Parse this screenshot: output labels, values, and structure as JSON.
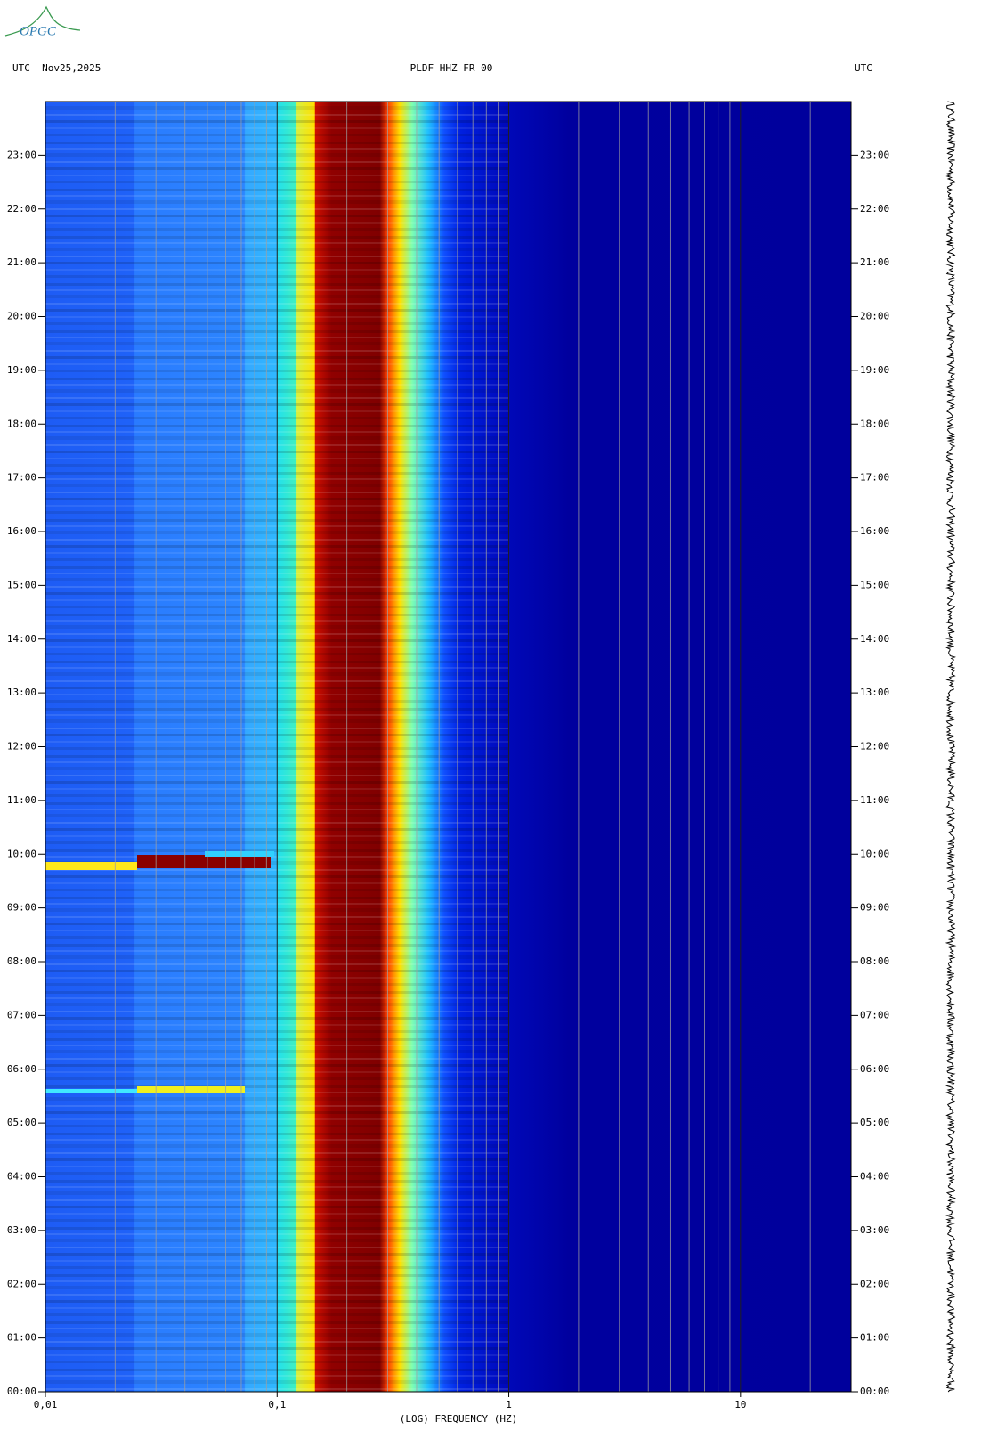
{
  "logo": "OPGC",
  "chart_data": {
    "type": "spectrogram",
    "title": "PLDF HHZ FR 00",
    "date_label": "UTC  Nov25,2025",
    "right_label": "UTC",
    "xlabel": "(LOG) FREQUENCY (HZ)",
    "xscale": "log",
    "xlim": [
      0.01,
      30
    ],
    "xticks": [
      {
        "value": 0.01,
        "label": "0,01"
      },
      {
        "value": 0.1,
        "label": "0,1"
      },
      1,
      10
    ],
    "minor_xticks": [
      0.02,
      0.03,
      0.04,
      0.05,
      0.06,
      0.07,
      0.08,
      0.09,
      0.2,
      0.3,
      0.4,
      0.5,
      0.6,
      0.7,
      0.8,
      0.9,
      2,
      3,
      4,
      5,
      6,
      7,
      8,
      9,
      20
    ],
    "ylim": [
      0,
      24
    ],
    "yticks": [
      {
        "value": 0,
        "label": "00:00"
      },
      {
        "value": 1,
        "label": "01:00"
      },
      {
        "value": 2,
        "label": "02:00"
      },
      {
        "value": 3,
        "label": "03:00"
      },
      {
        "value": 4,
        "label": "04:00"
      },
      {
        "value": 5,
        "label": "05:00"
      },
      {
        "value": 6,
        "label": "06:00"
      },
      {
        "value": 7,
        "label": "07:00"
      },
      {
        "value": 8,
        "label": "08:00"
      },
      {
        "value": 9,
        "label": "09:00"
      },
      {
        "value": 10,
        "label": "10:00"
      },
      {
        "value": 11,
        "label": "11:00"
      },
      {
        "value": 12,
        "label": "12:00"
      },
      {
        "value": 13,
        "label": "13:00"
      },
      {
        "value": 14,
        "label": "14:00"
      },
      {
        "value": 15,
        "label": "15:00"
      },
      {
        "value": 16,
        "label": "16:00"
      },
      {
        "value": 17,
        "label": "17:00"
      },
      {
        "value": 18,
        "label": "18:00"
      },
      {
        "value": 19,
        "label": "19:00"
      },
      {
        "value": 20,
        "label": "20:00"
      },
      {
        "value": 21,
        "label": "21:00"
      },
      {
        "value": 22,
        "label": "22:00"
      },
      {
        "value": 23,
        "label": "23:00"
      }
    ],
    "grid": true
  }
}
